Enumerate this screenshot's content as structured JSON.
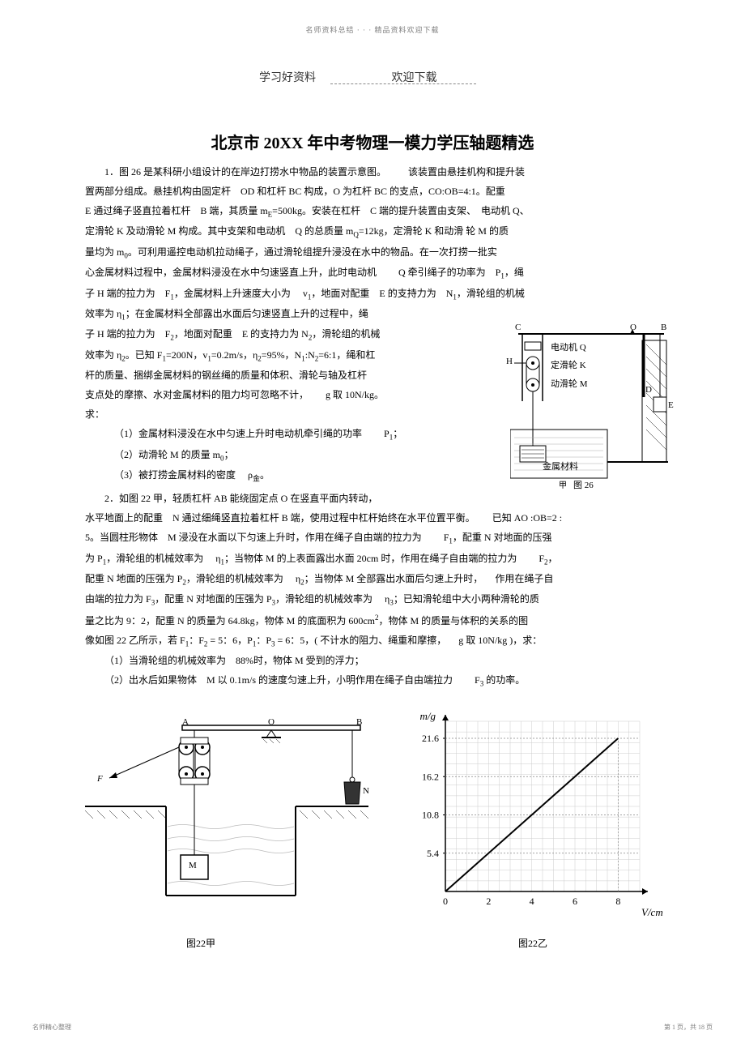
{
  "header": {
    "top_line": "名师资料总结 · · · 精品资料欢迎下载",
    "sub_left": "学习好资料",
    "sub_right": "欢迎下载"
  },
  "title": "北京市 20XX 年中考物理一模力学压轴题精选",
  "body": {
    "p1_part1": "1．图 26 是某科研小组设计的在岸边打捞水中物品的装置示意图。",
    "p1_part2": "该装置由悬挂机构和提升装",
    "p2": "置两部分组成。悬挂机构由固定杆　OD 和杠杆 BC 构成，O 为杠杆 BC 的支点，CO:OB=4:1。配重",
    "p3_a": "E 通过绳子竖直拉着杠杆　B 端，其质量 m",
    "p3_b": "=500kg。安装在杠杆　C 端的提升装置由支架、　电动机 Q、",
    "p4_a": "定滑轮 K 及动滑轮 M 构成。其中支架和电动机　Q 的总质量 m",
    "p4_b": "=12kg，定滑轮 K 和动滑 轮 M 的质",
    "p5_a": "量均为 m",
    "p5_b": "。可利用遥控电动机拉动绳子，通过滑轮组提升浸没在水中的物品。在一次打捞一批实",
    "p6_a": "心金属材料过程中，金属材料浸没在水中匀速竖直上升，此时电动机",
    "p6_b": "Q 牵引绳子的功率为　P",
    "p6_c": "，绳",
    "p7_a": "子 H 端的拉力为　F",
    "p7_b": "，金属材料上升速度大小为",
    "p7_c": "v",
    "p7_d": "，地面对配重　E 的支持力为　N",
    "p7_e": "，滑轮组的机械",
    "p8_a": "效率为  η",
    "p8_b": "；在金属材料全部露出水面后匀速竖直上升的过程中，绳",
    "p9_a": "子 H 端的拉力为　F",
    "p9_b": "，地面对配重　E 的支持力为  N",
    "p9_c": "，滑轮组的机械",
    "p10_a": "效率为 η",
    "p10_b": "。已知  F",
    "p10_c": "=200N，v",
    "p10_d": "=0.2m/s，η",
    "p10_e": "=95%，N",
    "p10_f": ":N",
    "p10_g": "=6:1，绳和杠",
    "p11": "杆的质量、捆绑金属材料的钢丝绳的质量和体积、滑轮与轴及杠杆",
    "p12_a": "支点处的摩擦、水对金属材料的阻力均可忽略不计，",
    "p12_b": "g 取 10N/kg。",
    "p13": "求：",
    "q1_a": "（1）金属材料浸没在水中匀速上升时电动机牵引绳的功率",
    "q1_b": "P",
    "q1_c": "；",
    "q2_a": "（2）动滑轮  M 的质量  m",
    "q2_b": "；",
    "q3_a": "（3）被打捞金属材料的密度",
    "q3_b": "ρ",
    "q3_c": "金",
    "q3_d": "。",
    "p2_1": "2．如图  22 甲，轻质杠杆  AB 能绕固定点  O 在竖直平面内转动，",
    "p2_2_a": "水平地面上的配重　N 通过细绳竖直拉着杠杆  B 端，使用过程中杠杆始终在水平位置平衡。",
    "p2_2_b": "已知 AO :OB=2 :",
    "p2_3_a": "5。当圆柱形物体　M 浸没在水面以下匀速上升时，作用在绳子自由端的拉力为",
    "p2_3_b": "F",
    "p2_3_c": "，配重  N 对地面的压强",
    "p2_4_a": "为 P",
    "p2_4_b": "，滑轮组的机械效率为",
    "p2_4_c": "η",
    "p2_4_d": "；当物体  M 的上表面露出水面  20cm 时，作用在绳子自由端的拉力为",
    "p2_4_e": "F",
    "p2_4_f": "，",
    "p2_5_a": "配重 N 地面的压强为  P",
    "p2_5_b": "，滑轮组的机械效率为",
    "p2_5_c": "η",
    "p2_5_d": "；当物体  M 全部露出水面后匀速上升时，",
    "p2_5_e": "作用在绳子自",
    "p2_6_a": "由端的拉力为  F",
    "p2_6_b": "，配重  N 对地面的压强为  P",
    "p2_6_c": "，滑轮组的机械效率为",
    "p2_6_d": "η",
    "p2_6_e": "；已知滑轮组中大小两种滑轮的质",
    "p2_7_a": "量之比为  9：2，配重  N 的质量为  64.8kg，物体  M 的底面积为  600cm",
    "p2_7_b": "，物体  M 的质量与体积的关系的图",
    "p2_8_a": "像如图  22 乙所示，若  F",
    "p2_8_b": "：F",
    "p2_8_c": " = 5：6，P",
    "p2_8_d": "：P",
    "p2_8_e": " = 6：5，( 不计水的阻力、绳重和摩擦，",
    "p2_8_f": "g 取 10N/kg )，求：",
    "p2_q1": "（1）当滑轮组的机械效率为　88%时，物体  M 受到的浮力；",
    "p2_q2_a": "（2）出水后如果物体　M 以 0.1m/s 的速度匀速上升，小明作用在绳子自由端拉力",
    "p2_q2_b": "F",
    "p2_q2_c": " 的功率。"
  },
  "figure26": {
    "labels": {
      "C": "C",
      "O": "O",
      "B": "B",
      "D": "D",
      "E": "E",
      "H": "H",
      "motor": "电动机 Q",
      "fixed_pulley": "定滑轮 K",
      "moving_pulley": "动滑轮 M",
      "material": "金属材料",
      "caption_sub": "甲",
      "caption": "图 26"
    },
    "colors": {
      "stroke": "#000000",
      "water": "#dddddd",
      "ground_hatch": "#000000"
    }
  },
  "figure22a": {
    "labels": {
      "A": "A",
      "O": "O",
      "B": "B",
      "F": "F",
      "M": "M",
      "N": "N"
    },
    "caption": "图22甲",
    "colors": {
      "stroke": "#000000",
      "water_light": "#eeeeee",
      "water_dark": "#cccccc"
    }
  },
  "figure22b": {
    "caption": "图22乙",
    "y_label": "m/g",
    "x_label": "V/cm",
    "x_label_sup": "3",
    "x_ticks": [
      "0",
      "2",
      "4",
      "6",
      "8"
    ],
    "y_ticks": [
      "5.4",
      "10.8",
      "16.2",
      "21.6"
    ],
    "grid_step": 20,
    "line_points": [
      [
        0,
        0
      ],
      [
        8,
        21.6
      ]
    ],
    "xlim": [
      0,
      9
    ],
    "ylim": [
      0,
      24
    ],
    "colors": {
      "grid": "#cccccc",
      "axis": "#000000",
      "line": "#000000"
    }
  },
  "footer": {
    "left": "名师精心整理",
    "right": "第 1 页，共 18 页"
  }
}
